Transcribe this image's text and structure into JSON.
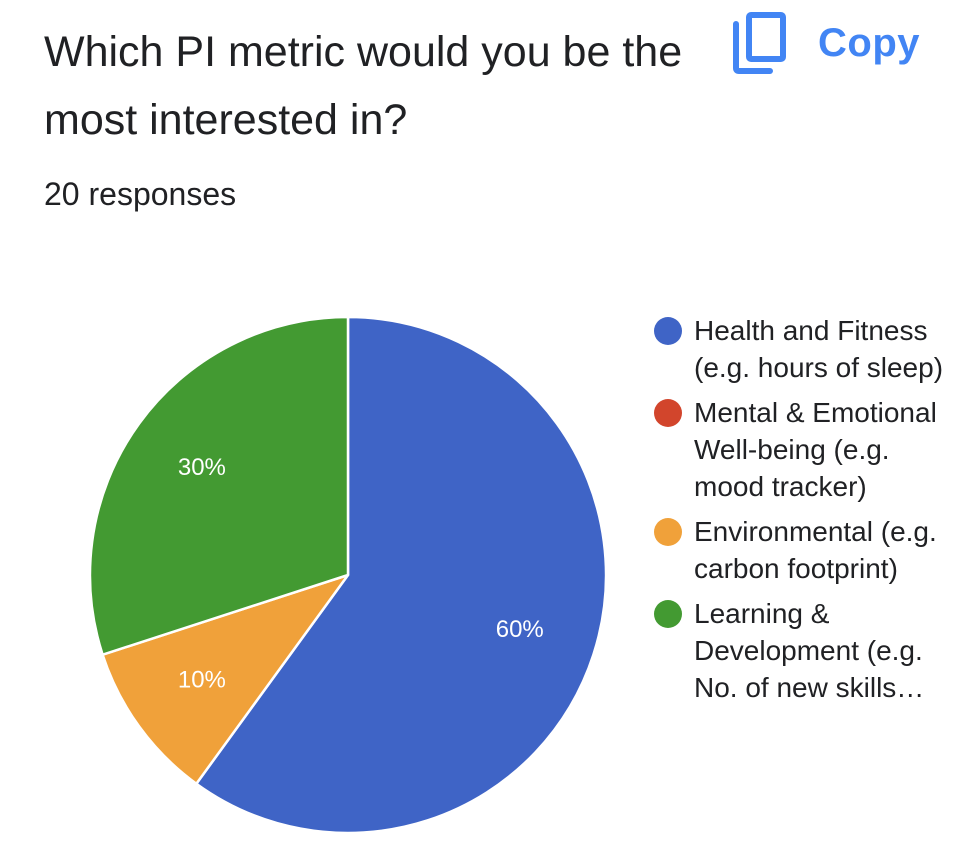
{
  "header": {
    "title": "Which PI metric would you be the most interested in?",
    "responses": "20 responses",
    "copy_label": "Copy",
    "copy_icon": "copy-icon",
    "accent_color": "#4285f4"
  },
  "chart_data": {
    "type": "pie",
    "title": "Which PI metric would you be the most interested in?",
    "legend_position": "right",
    "start_angle_degrees": 90,
    "direction": "clockwise",
    "slices": [
      {
        "label": "Health and Fitness (e.g. hours of sleep)",
        "value": 60,
        "display": "60%",
        "color": "#3f64c6"
      },
      {
        "label": "Mental & Emotional Well-being (e.g. mood tracker)",
        "value": 0,
        "display": "",
        "color": "#d2452c"
      },
      {
        "label": "Environmental (e.g. carbon footprint)",
        "value": 10,
        "display": "10%",
        "color": "#f0a13a"
      },
      {
        "label": "Learning & Development (e.g. No. of new skills…",
        "value": 30,
        "display": "30%",
        "color": "#439a32"
      }
    ]
  }
}
